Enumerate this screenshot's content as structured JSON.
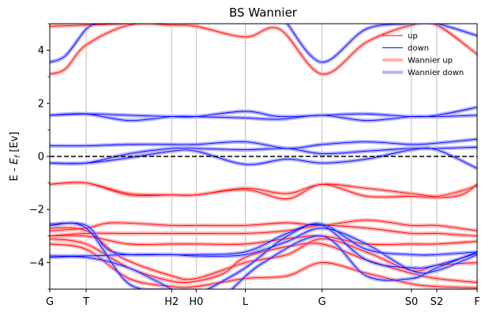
{
  "chart_data": {
    "type": "line",
    "title": "BS Wannier",
    "ylabel": "E - E_f [Ev]",
    "ylabel_main": "E - ",
    "ylabel_sub": "f",
    "ylabel_tail": " [Ev]",
    "xlim": [
      0,
      540
    ],
    "ylim": [
      -5,
      5
    ],
    "yticks": [
      -4,
      -2,
      0,
      2,
      4
    ],
    "ytick_labels": [
      "−4",
      "−2",
      "0",
      "2",
      "4"
    ],
    "yticks_minor": [
      -5,
      -3,
      -1,
      1,
      3,
      5
    ],
    "kpoints": [
      {
        "label": "G",
        "x": 0
      },
      {
        "label": "T",
        "x": 46
      },
      {
        "label": "H2",
        "x": 154
      },
      {
        "label": "H0",
        "x": 185
      },
      {
        "label": "L",
        "x": 247
      },
      {
        "label": "G",
        "x": 344
      },
      {
        "label": "S0",
        "x": 457
      },
      {
        "label": "S2",
        "x": 489
      },
      {
        "label": "F",
        "x": 540
      }
    ],
    "fermi_level": 0,
    "legend": {
      "position": "top-right",
      "entries": [
        {
          "label": "up",
          "color": "#ff0000",
          "style": "thin"
        },
        {
          "label": "down",
          "color": "#0000ff",
          "style": "thin"
        },
        {
          "label": "Wannier up",
          "color": "#ffb3b3",
          "style": "thick"
        },
        {
          "label": "Wannier down",
          "color": "#b3b3ff",
          "style": "thick"
        }
      ]
    },
    "series": [
      {
        "name": "up",
        "color": "#ff0000",
        "bands": [
          [
            [
              0,
              3.1
            ],
            [
              20,
              3.3
            ],
            [
              46,
              4.2
            ],
            [
              100,
              4.95
            ],
            [
              154,
              4.95
            ],
            [
              185,
              4.9
            ],
            [
              247,
              4.5
            ],
            [
              290,
              4.8
            ],
            [
              344,
              3.1
            ],
            [
              400,
              4.3
            ],
            [
              457,
              4.95
            ],
            [
              489,
              4.95
            ],
            [
              540,
              3.85
            ]
          ],
          [
            [
              0,
              4.9
            ],
            [
              46,
              4.95
            ],
            [
              100,
              5.0
            ],
            [
              154,
              5.0
            ]
          ],
          [
            [
              0,
              -1.05
            ],
            [
              46,
              -1.0
            ],
            [
              100,
              -1.4
            ],
            [
              154,
              -1.45
            ],
            [
              185,
              -1.45
            ],
            [
              247,
              -1.2
            ],
            [
              300,
              -1.4
            ],
            [
              344,
              -1.05
            ],
            [
              400,
              -1.2
            ],
            [
              457,
              -1.4
            ],
            [
              489,
              -1.5
            ],
            [
              520,
              -1.3
            ],
            [
              540,
              -1.1
            ]
          ],
          [
            [
              0,
              -1.05
            ],
            [
              46,
              -1.0
            ],
            [
              100,
              -1.45
            ],
            [
              154,
              -1.45
            ],
            [
              185,
              -1.45
            ],
            [
              247,
              -1.25
            ],
            [
              300,
              -1.6
            ],
            [
              344,
              -1.05
            ],
            [
              400,
              -1.5
            ],
            [
              457,
              -1.5
            ],
            [
              489,
              -1.55
            ],
            [
              520,
              -1.45
            ],
            [
              540,
              -1.05
            ]
          ],
          [
            [
              0,
              -2.8
            ],
            [
              46,
              -2.7
            ],
            [
              80,
              -2.5
            ],
            [
              154,
              -2.6
            ],
            [
              185,
              -2.6
            ],
            [
              247,
              -2.6
            ],
            [
              300,
              -2.5
            ],
            [
              344,
              -2.6
            ],
            [
              400,
              -2.4
            ],
            [
              457,
              -2.6
            ],
            [
              489,
              -2.6
            ],
            [
              540,
              -2.8
            ]
          ],
          [
            [
              0,
              -3.0
            ],
            [
              46,
              -2.9
            ],
            [
              100,
              -2.9
            ],
            [
              154,
              -2.9
            ],
            [
              185,
              -2.9
            ],
            [
              247,
              -2.9
            ],
            [
              300,
              -2.8
            ],
            [
              344,
              -2.6
            ],
            [
              400,
              -2.7
            ],
            [
              457,
              -2.9
            ],
            [
              489,
              -2.9
            ],
            [
              540,
              -3.0
            ]
          ],
          [
            [
              0,
              -3.0
            ],
            [
              46,
              -3.0
            ],
            [
              100,
              -3.3
            ],
            [
              154,
              -3.3
            ],
            [
              185,
              -3.3
            ],
            [
              247,
              -3.3
            ],
            [
              300,
              -3.1
            ],
            [
              344,
              -3.0
            ],
            [
              400,
              -3.3
            ],
            [
              457,
              -3.3
            ],
            [
              489,
              -3.3
            ],
            [
              540,
              -3.2
            ]
          ],
          [
            [
              0,
              -2.7
            ],
            [
              46,
              -2.8
            ],
            [
              90,
              -3.8
            ],
            [
              154,
              -4.5
            ],
            [
              185,
              -4.6
            ],
            [
              247,
              -4.0
            ],
            [
              300,
              -3.7
            ],
            [
              344,
              -3.1
            ],
            [
              400,
              -3.6
            ],
            [
              457,
              -4.3
            ],
            [
              489,
              -4.1
            ],
            [
              540,
              -4.0
            ]
          ],
          [
            [
              0,
              -3.1
            ],
            [
              46,
              -3.3
            ],
            [
              100,
              -4.2
            ],
            [
              154,
              -4.7
            ],
            [
              185,
              -4.7
            ],
            [
              220,
              -4.4
            ],
            [
              247,
              -3.8
            ],
            [
              300,
              -3.4
            ],
            [
              344,
              -3.3
            ],
            [
              400,
              -3.9
            ],
            [
              457,
              -4.4
            ],
            [
              489,
              -4.6
            ],
            [
              540,
              -4.75
            ]
          ],
          [
            [
              0,
              -3.3
            ],
            [
              46,
              -3.5
            ],
            [
              100,
              -4.6
            ],
            [
              154,
              -4.9
            ],
            [
              185,
              -4.9
            ],
            [
              247,
              -4.6
            ],
            [
              300,
              -4.5
            ],
            [
              344,
              -4.0
            ],
            [
              400,
              -4.4
            ],
            [
              457,
              -4.8
            ],
            [
              489,
              -4.9
            ],
            [
              540,
              -4.95
            ]
          ]
        ]
      },
      {
        "name": "down",
        "color": "#0000ff",
        "bands": [
          [
            [
              0,
              3.55
            ],
            [
              20,
              3.8
            ],
            [
              46,
              4.8
            ],
            [
              60,
              5.0
            ]
          ],
          [
            [
              300,
              5.0
            ],
            [
              344,
              3.55
            ],
            [
              400,
              4.8
            ],
            [
              457,
              5.0
            ],
            [
              489,
              5.0
            ],
            [
              540,
              4.55
            ]
          ],
          [
            [
              0,
              1.55
            ],
            [
              46,
              1.6
            ],
            [
              100,
              1.35
            ],
            [
              154,
              1.5
            ],
            [
              185,
              1.5
            ],
            [
              247,
              1.45
            ],
            [
              290,
              1.4
            ],
            [
              344,
              1.55
            ],
            [
              400,
              1.35
            ],
            [
              457,
              1.5
            ],
            [
              489,
              1.5
            ],
            [
              540,
              1.55
            ]
          ],
          [
            [
              0,
              1.55
            ],
            [
              46,
              1.6
            ],
            [
              100,
              1.55
            ],
            [
              154,
              1.5
            ],
            [
              185,
              1.5
            ],
            [
              247,
              1.7
            ],
            [
              290,
              1.5
            ],
            [
              344,
              1.55
            ],
            [
              400,
              1.6
            ],
            [
              457,
              1.5
            ],
            [
              489,
              1.55
            ],
            [
              540,
              1.85
            ]
          ],
          [
            [
              0,
              0.4
            ],
            [
              46,
              0.4
            ],
            [
              100,
              0.45
            ],
            [
              154,
              0.45
            ],
            [
              185,
              0.45
            ],
            [
              247,
              0.55
            ],
            [
              300,
              0.3
            ],
            [
              344,
              0.45
            ],
            [
              400,
              0.55
            ],
            [
              457,
              0.45
            ],
            [
              489,
              0.5
            ],
            [
              540,
              0.65
            ]
          ],
          [
            [
              0,
              -0.25
            ],
            [
              46,
              -0.25
            ],
            [
              100,
              0.1
            ],
            [
              154,
              0.3
            ],
            [
              185,
              0.3
            ],
            [
              247,
              0.25
            ],
            [
              300,
              0.3
            ],
            [
              344,
              0.1
            ],
            [
              400,
              0.2
            ],
            [
              457,
              0.3
            ],
            [
              489,
              0.3
            ],
            [
              540,
              0.35
            ]
          ],
          [
            [
              0,
              -0.25
            ],
            [
              46,
              -0.25
            ],
            [
              100,
              -0.05
            ],
            [
              154,
              0.2
            ],
            [
              185,
              0.2
            ],
            [
              247,
              -0.3
            ],
            [
              300,
              -0.1
            ],
            [
              344,
              -0.25
            ],
            [
              400,
              -0.1
            ],
            [
              457,
              0.25
            ],
            [
              489,
              0.25
            ],
            [
              540,
              -0.45
            ]
          ],
          [
            [
              0,
              -2.55
            ],
            [
              46,
              -2.6
            ],
            [
              80,
              -3.6
            ],
            [
              154,
              -3.7
            ],
            [
              185,
              -3.7
            ],
            [
              247,
              -3.6
            ],
            [
              300,
              -2.9
            ],
            [
              344,
              -2.55
            ],
            [
              400,
              -3.5
            ],
            [
              457,
              -3.7
            ],
            [
              489,
              -3.7
            ],
            [
              540,
              -3.6
            ]
          ],
          [
            [
              0,
              -3.75
            ],
            [
              46,
              -3.75
            ],
            [
              100,
              -3.7
            ],
            [
              154,
              -3.7
            ],
            [
              185,
              -3.75
            ],
            [
              247,
              -3.7
            ],
            [
              300,
              -3.2
            ],
            [
              344,
              -2.7
            ],
            [
              400,
              -3.3
            ],
            [
              457,
              -4.3
            ],
            [
              489,
              -4.3
            ],
            [
              540,
              -3.7
            ]
          ],
          [
            [
              0,
              -2.6
            ],
            [
              46,
              -2.7
            ],
            [
              100,
              -4.8
            ],
            [
              154,
              -5.0
            ]
          ],
          [
            [
              200,
              -5.0
            ],
            [
              247,
              -4.2
            ],
            [
              300,
              -3.0
            ],
            [
              344,
              -2.6
            ],
            [
              400,
              -3.9
            ],
            [
              457,
              -4.2
            ],
            [
              489,
              -4.1
            ],
            [
              540,
              -3.65
            ]
          ],
          [
            [
              0,
              -3.8
            ],
            [
              46,
              -3.8
            ],
            [
              100,
              -4.2
            ],
            [
              154,
              -5.0
            ]
          ],
          [
            [
              230,
              -5.0
            ],
            [
              270,
              -4.0
            ],
            [
              344,
              -3.0
            ],
            [
              400,
              -4.5
            ],
            [
              457,
              -4.6
            ],
            [
              489,
              -4.2
            ],
            [
              540,
              -3.6
            ]
          ]
        ]
      }
    ]
  }
}
